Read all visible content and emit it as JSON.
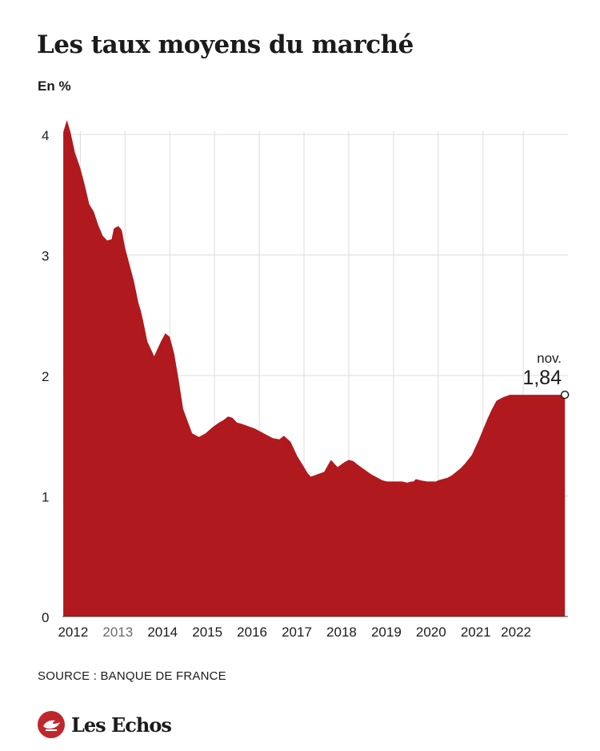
{
  "title": "Les taux moyens du marché",
  "subtitle": "En %",
  "source": "SOURCE : BANQUE DE FRANCE",
  "brand": "Les Echos",
  "annotation": {
    "label": "nov.",
    "value": "1,84"
  },
  "colors": {
    "area": "#b0191d",
    "grid": "#dcdcdc",
    "text": "#1b1b1b",
    "brand": "#c0272d"
  },
  "chart_data": {
    "type": "area",
    "title": "Les taux moyens du marché",
    "ylabel": "En %",
    "xlabel": "",
    "ylim": [
      0,
      4
    ],
    "xlim": [
      2011.6,
      2022.9
    ],
    "yticks": [
      0,
      1,
      2,
      3,
      4
    ],
    "xticks": [
      {
        "label": "2012",
        "x": 2012.0
      },
      {
        "label": "2013",
        "x": 2013.0
      },
      {
        "label": "2014",
        "x": 2014.0
      },
      {
        "label": "2015",
        "x": 2015.0
      },
      {
        "label": "2016",
        "x": 2016.0
      },
      {
        "label": "2017",
        "x": 2017.0
      },
      {
        "label": "2018",
        "x": 2018.0
      },
      {
        "label": "2019",
        "x": 2019.0
      },
      {
        "label": "2020",
        "x": 2020.0
      },
      {
        "label": "2021",
        "x": 2021.0
      },
      {
        "label": "2022",
        "x": 2021.9
      }
    ],
    "grid": true,
    "x": [
      2011.62,
      2011.7,
      2011.78,
      2011.88,
      2012.0,
      2012.1,
      2012.2,
      2012.3,
      2012.4,
      2012.5,
      2012.6,
      2012.7,
      2012.75,
      2012.85,
      2012.9,
      2012.93,
      2013.0,
      2013.1,
      2013.2,
      2013.3,
      2013.35,
      2013.4,
      2013.5,
      2013.65,
      2013.8,
      2013.9,
      2014.0,
      2014.1,
      2014.2,
      2014.3,
      2014.4,
      2014.5,
      2014.65,
      2014.8,
      2014.95,
      2015.1,
      2015.2,
      2015.3,
      2015.4,
      2015.5,
      2015.6,
      2015.75,
      2015.9,
      2016.0,
      2016.1,
      2016.2,
      2016.3,
      2016.45,
      2016.55,
      2016.7,
      2016.85,
      2017.0,
      2017.08,
      2017.15,
      2017.3,
      2017.45,
      2017.6,
      2017.75,
      2017.9,
      2018.0,
      2018.1,
      2018.2,
      2018.35,
      2018.5,
      2018.6,
      2018.75,
      2018.85,
      2019.0,
      2019.1,
      2019.2,
      2019.3,
      2019.4,
      2019.45,
      2019.5,
      2019.6,
      2019.75,
      2019.85,
      2019.95,
      2020.0,
      2020.1,
      2020.2,
      2020.3,
      2020.4,
      2020.5,
      2020.6,
      2020.75,
      2020.9,
      2021.0,
      2021.1,
      2021.2,
      2021.3,
      2021.45,
      2021.6,
      2021.7,
      2021.8,
      2021.9,
      2022.0,
      2022.1,
      2022.2,
      2022.35,
      2022.5,
      2022.6,
      2022.75,
      2022.83
    ],
    "y": [
      4.02,
      4.12,
      4.02,
      3.85,
      3.72,
      3.58,
      3.42,
      3.36,
      3.25,
      3.16,
      3.12,
      3.13,
      3.22,
      3.24,
      3.22,
      3.2,
      3.06,
      2.92,
      2.78,
      2.6,
      2.54,
      2.46,
      2.28,
      2.16,
      2.28,
      2.35,
      2.32,
      2.18,
      1.96,
      1.72,
      1.62,
      1.52,
      1.49,
      1.52,
      1.57,
      1.61,
      1.63,
      1.66,
      1.65,
      1.61,
      1.6,
      1.58,
      1.56,
      1.54,
      1.52,
      1.5,
      1.48,
      1.47,
      1.5,
      1.45,
      1.33,
      1.24,
      1.19,
      1.16,
      1.18,
      1.2,
      1.3,
      1.24,
      1.28,
      1.3,
      1.29,
      1.26,
      1.22,
      1.18,
      1.16,
      1.13,
      1.12,
      1.12,
      1.12,
      1.12,
      1.11,
      1.12,
      1.12,
      1.14,
      1.13,
      1.12,
      1.12,
      1.12,
      1.13,
      1.14,
      1.15,
      1.17,
      1.2,
      1.23,
      1.27,
      1.34,
      1.46,
      1.55,
      1.64,
      1.72,
      1.79,
      1.82,
      1.84,
      1.84,
      1.84,
      1.84,
      1.84,
      1.84,
      1.84,
      1.84,
      1.84,
      1.84,
      1.84,
      1.84
    ]
  }
}
